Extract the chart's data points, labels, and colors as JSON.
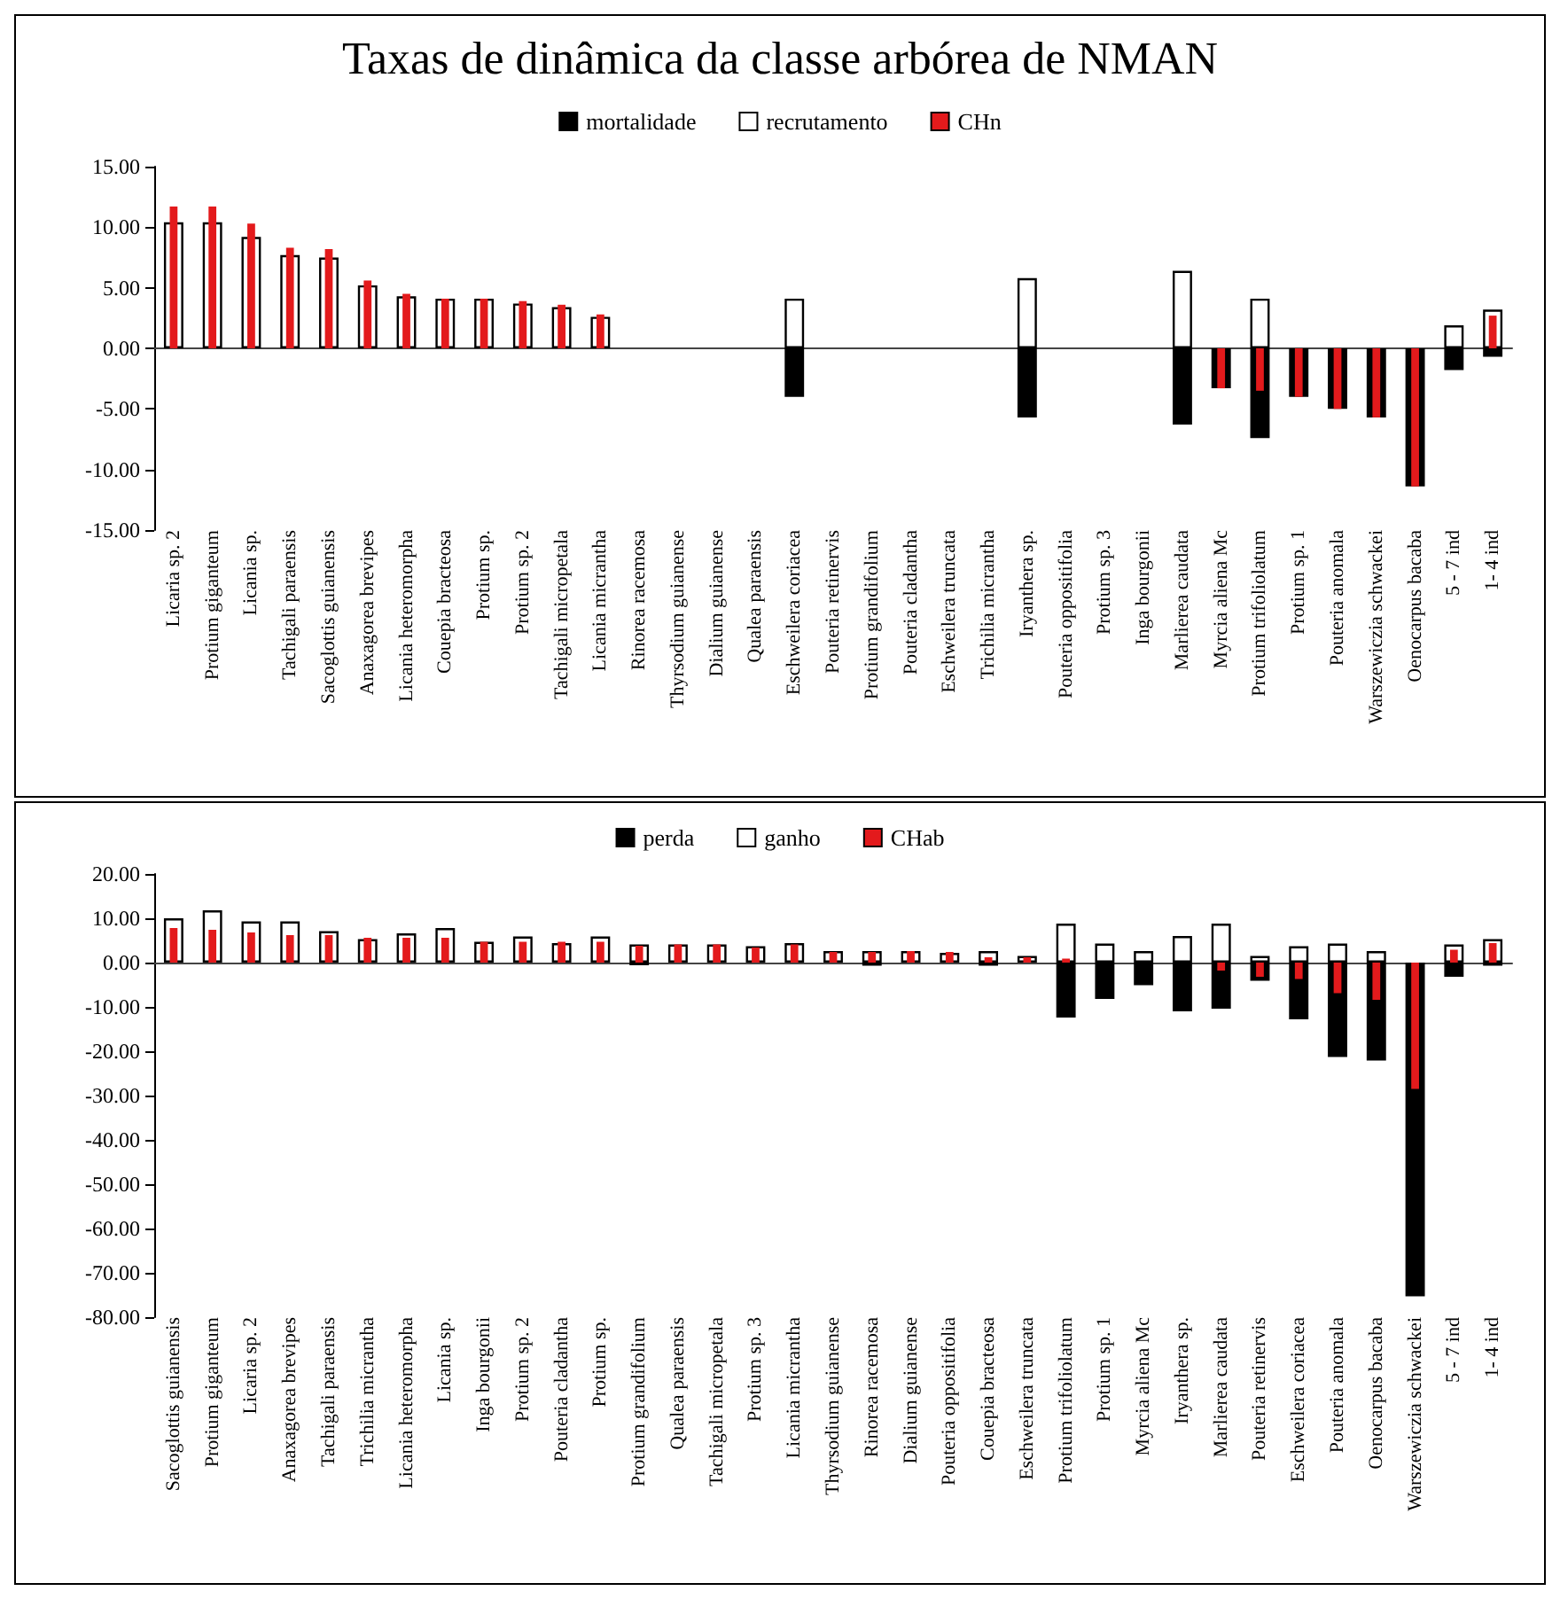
{
  "chart_data": [
    {
      "type": "bar",
      "title": "Taxas de dinâmica da classe arbórea de NMAN",
      "legend": "top",
      "categories": [
        "Licaria sp. 2",
        "Protium giganteum",
        "Licania sp.",
        "Tachigali paraensis",
        "Sacoglottis guianensis",
        "Anaxagorea brevipes",
        "Licania heteromorpha",
        "Couepia bracteosa",
        "Protium sp.",
        "Protium sp. 2",
        "Tachigali micropetala",
        "Licania micrantha",
        "Rinorea racemosa",
        "Thyrsodium guianense",
        "Dialium guianense",
        "Qualea paraensis",
        "Eschweilera coriacea",
        "Pouteria retinervis",
        "Protium grandifolium",
        "Pouteria cladantha",
        "Eschweilera truncata",
        "Trichilia micrantha",
        "Iryanthera sp.",
        "Pouteria oppositifolia",
        "Protium sp. 3",
        "Inga bourgonii",
        "Marlierea caudata",
        "Myrcia aliena Mc",
        "Protium trifoliolatum",
        "Protium sp. 1",
        "Pouteria anomala",
        "Warszewiczia schwackei",
        "Oenocarpus bacaba",
        "5 - 7 ind",
        "1- 4 ind"
      ],
      "series": [
        {
          "name": "mortalidade",
          "color": "#000000",
          "values": [
            0,
            0,
            0,
            0,
            0,
            0,
            0,
            0,
            0,
            0,
            0,
            0,
            0,
            0,
            0,
            0,
            -4.0,
            0,
            0,
            0,
            0,
            0,
            -5.7,
            0,
            0,
            0,
            -6.3,
            -3.3,
            -7.4,
            -4.0,
            -5.0,
            -5.7,
            -11.4,
            -1.8,
            -0.7
          ]
        },
        {
          "name": "recrutamento",
          "color": "#ffffff",
          "values": [
            10.4,
            10.4,
            9.2,
            7.7,
            7.5,
            5.2,
            4.3,
            4.1,
            4.1,
            3.7,
            3.4,
            2.6,
            0,
            0,
            0,
            0,
            4.1,
            0,
            0,
            0,
            0,
            0,
            5.8,
            0,
            0,
            0,
            6.4,
            0,
            4.1,
            0,
            0,
            0,
            0,
            1.9,
            3.2
          ]
        },
        {
          "name": "CHn",
          "color": "#e31a1c",
          "values": [
            11.7,
            11.7,
            10.3,
            8.3,
            8.2,
            5.6,
            4.5,
            4.1,
            4.1,
            3.9,
            3.6,
            2.8,
            0,
            0,
            0,
            0,
            0,
            0,
            0,
            0,
            0,
            0,
            0,
            0,
            0,
            0,
            0,
            -3.3,
            -3.5,
            -4.0,
            -5.0,
            -5.7,
            -11.4,
            0,
            2.7
          ]
        }
      ],
      "ylim": [
        -15,
        15
      ],
      "yticks": [
        {
          "value": -15,
          "label": "-15.00"
        },
        {
          "value": -10,
          "label": "-10.00"
        },
        {
          "value": -5,
          "label": "-5.00"
        },
        {
          "value": 0,
          "label": "0.00"
        },
        {
          "value": 5,
          "label": "5.00"
        },
        {
          "value": 10,
          "label": "10.00"
        },
        {
          "value": 15,
          "label": "15.00"
        }
      ]
    },
    {
      "type": "bar",
      "legend": "top",
      "categories": [
        "Sacoglottis guianensis",
        "Protium giganteum",
        "Licaria sp. 2",
        "Anaxagorea brevipes",
        "Tachigali paraensis",
        "Trichilia micrantha",
        "Licania heteromorpha",
        "Licania sp.",
        "Inga bourgonii",
        "Protium sp. 2",
        "Pouteria cladantha",
        "Protium sp.",
        "Protium grandifolium",
        "Qualea paraensis",
        "Tachigali micropetala",
        "Protium sp. 3",
        "Licania micrantha",
        "Thyrsodium guianense",
        "Rinorea racemosa",
        "Dialium guianense",
        "Pouteria oppositifolia",
        "Couepia bracteosa",
        "Eschweilera truncata",
        "Protium trifoliolatum",
        "Protium sp. 1",
        "Myrcia aliena Mc",
        "Iryanthera sp.",
        "Marlierea caudata",
        "Pouteria retinervis",
        "Eschweilera coriacea",
        "Pouteria anomala",
        "Oenocarpus bacaba",
        "Warszewiczia schwackei",
        "5 - 7 ind",
        "1- 4 ind"
      ],
      "series": [
        {
          "name": "perda",
          "color": "#000000",
          "values": [
            0,
            0,
            0,
            0,
            0,
            0,
            0,
            0,
            0,
            0,
            0,
            0,
            -0.6,
            0,
            0,
            0,
            0,
            0,
            -0.7,
            0,
            0,
            -0.7,
            0,
            -12.4,
            -8.2,
            -5.1,
            -11.0,
            -10.4,
            -4.1,
            -12.8,
            -21.3,
            -22.1,
            -75.3,
            -3.2,
            -0.7
          ]
        },
        {
          "name": "ganho",
          "color": "#ffffff",
          "values": [
            10.0,
            11.8,
            9.3,
            9.3,
            7.1,
            5.3,
            6.6,
            7.8,
            4.7,
            5.9,
            4.4,
            5.9,
            4.1,
            4.1,
            4.1,
            3.7,
            4.4,
            2.6,
            2.6,
            2.6,
            2.2,
            2.6,
            1.5,
            8.8,
            4.3,
            2.6,
            6.0,
            8.8,
            1.5,
            3.7,
            4.3,
            2.6,
            0,
            4.1,
            5.3
          ]
        },
        {
          "name": "CHab",
          "color": "#e31a1c",
          "values": [
            7.8,
            7.4,
            6.8,
            6.2,
            6.2,
            5.6,
            5.6,
            5.6,
            4.7,
            4.7,
            4.7,
            4.7,
            3.8,
            4.1,
            4.1,
            3.4,
            4.1,
            2.4,
            2.4,
            2.6,
            2.4,
            1.2,
            1.2,
            0.9,
            0,
            0,
            0,
            -1.8,
            -3.2,
            -3.7,
            -6.9,
            -8.4,
            -28.5,
            2.9,
            4.4
          ]
        }
      ],
      "ylim": [
        -80,
        20
      ],
      "yticks": [
        {
          "value": -80,
          "label": "-80.00"
        },
        {
          "value": -70,
          "label": "-70.00"
        },
        {
          "value": -60,
          "label": "-60.00"
        },
        {
          "value": -50,
          "label": "-50.00"
        },
        {
          "value": -40,
          "label": "-40.00"
        },
        {
          "value": -30,
          "label": "-30.00"
        },
        {
          "value": -20,
          "label": "-20.00"
        },
        {
          "value": -10,
          "label": "-10.00"
        },
        {
          "value": 0,
          "label": "0.00"
        },
        {
          "value": 10,
          "label": "10.00"
        },
        {
          "value": 20,
          "label": "20.00"
        }
      ]
    }
  ]
}
